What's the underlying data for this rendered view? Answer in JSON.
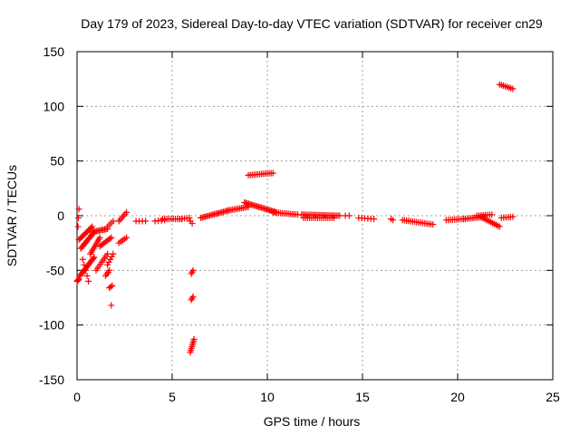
{
  "chart_data": {
    "type": "scatter",
    "title": "Day 179 of 2023, Sidereal Day-to-day VTEC variation (SDTVAR) for receiver cn29",
    "xlabel": "GPS time / hours",
    "ylabel": "SDTVAR / TECUs",
    "xlim": [
      0,
      25
    ],
    "ylim": [
      -150,
      150
    ],
    "xticks": [
      0,
      5,
      10,
      15,
      20,
      25
    ],
    "yticks": [
      -150,
      -100,
      -50,
      0,
      50,
      100,
      150
    ],
    "xtick_labels": [
      "0",
      "5",
      "10",
      "15",
      "20",
      "25"
    ],
    "ytick_labels": [
      "-150",
      "-100",
      "-50",
      "0",
      "50",
      "100",
      "150"
    ],
    "grid": true,
    "marker": "+",
    "color": "#ff0000",
    "segments": [
      {
        "x0": 0.0,
        "y0": -60,
        "x1": 0.1,
        "y1": -58,
        "n": 4
      },
      {
        "x0": 0.05,
        "y0": -10,
        "x1": 0.1,
        "y1": 6,
        "n": 3
      },
      {
        "x0": 0.15,
        "y0": -55,
        "x1": 0.9,
        "y1": -38,
        "n": 16
      },
      {
        "x0": 0.2,
        "y0": -30,
        "x1": 0.9,
        "y1": -15,
        "n": 14
      },
      {
        "x0": 0.1,
        "y0": -22,
        "x1": 0.8,
        "y1": -10,
        "n": 12
      },
      {
        "x0": 0.3,
        "y0": -40,
        "x1": 0.6,
        "y1": -60,
        "n": 5
      },
      {
        "x0": 0.7,
        "y0": -35,
        "x1": 1.2,
        "y1": -20,
        "n": 10
      },
      {
        "x0": 0.8,
        "y0": -15,
        "x1": 1.6,
        "y1": -12,
        "n": 12
      },
      {
        "x0": 1.0,
        "y0": -50,
        "x1": 1.6,
        "y1": -35,
        "n": 9
      },
      {
        "x0": 1.2,
        "y0": -28,
        "x1": 1.8,
        "y1": -20,
        "n": 9
      },
      {
        "x0": 1.5,
        "y0": -55,
        "x1": 1.7,
        "y1": -50,
        "n": 4
      },
      {
        "x0": 1.6,
        "y0": -45,
        "x1": 1.9,
        "y1": -35,
        "n": 5
      },
      {
        "x0": 1.6,
        "y0": -10,
        "x1": 1.9,
        "y1": -5,
        "n": 4
      },
      {
        "x0": 1.7,
        "y0": -66,
        "x1": 1.85,
        "y1": -64,
        "n": 3
      },
      {
        "x0": 1.8,
        "y0": -82,
        "x1": 1.8,
        "y1": -82,
        "n": 1
      },
      {
        "x0": 2.2,
        "y0": -5,
        "x1": 2.6,
        "y1": 3,
        "n": 6
      },
      {
        "x0": 2.2,
        "y0": -25,
        "x1": 2.6,
        "y1": -20,
        "n": 5
      },
      {
        "x0": 3.1,
        "y0": -5,
        "x1": 3.6,
        "y1": -5,
        "n": 4
      },
      {
        "x0": 4.1,
        "y0": -5,
        "x1": 4.6,
        "y1": -4,
        "n": 4
      },
      {
        "x0": 4.5,
        "y0": -3,
        "x1": 5.5,
        "y1": -3,
        "n": 10
      },
      {
        "x0": 5.4,
        "y0": -3,
        "x1": 5.9,
        "y1": -2,
        "n": 5
      },
      {
        "x0": 5.95,
        "y0": -5,
        "x1": 6.05,
        "y1": -7,
        "n": 2
      },
      {
        "x0": 6.0,
        "y0": -53,
        "x1": 6.1,
        "y1": -50,
        "n": 3
      },
      {
        "x0": 6.0,
        "y0": -77,
        "x1": 6.1,
        "y1": -74,
        "n": 3
      },
      {
        "x0": 5.95,
        "y0": -125,
        "x1": 6.15,
        "y1": -113,
        "n": 8
      },
      {
        "x0": 6.5,
        "y0": -2,
        "x1": 8.0,
        "y1": 5,
        "n": 20
      },
      {
        "x0": 8.0,
        "y0": 5,
        "x1": 9.0,
        "y1": 8,
        "n": 12
      },
      {
        "x0": 8.8,
        "y0": 12,
        "x1": 10.5,
        "y1": 3,
        "n": 24
      },
      {
        "x0": 9.0,
        "y0": 37,
        "x1": 10.3,
        "y1": 39,
        "n": 14
      },
      {
        "x0": 10.3,
        "y0": 3,
        "x1": 11.6,
        "y1": 1,
        "n": 14
      },
      {
        "x0": 11.8,
        "y0": 1,
        "x1": 13.8,
        "y1": 0,
        "n": 24
      },
      {
        "x0": 11.9,
        "y0": -2,
        "x1": 13.5,
        "y1": -2,
        "n": 16
      },
      {
        "x0": 14.1,
        "y0": 0,
        "x1": 14.3,
        "y1": 0,
        "n": 2
      },
      {
        "x0": 14.8,
        "y0": -2,
        "x1": 15.6,
        "y1": -3,
        "n": 6
      },
      {
        "x0": 16.5,
        "y0": -3,
        "x1": 16.6,
        "y1": -4,
        "n": 2
      },
      {
        "x0": 17.1,
        "y0": -4,
        "x1": 18.7,
        "y1": -8,
        "n": 16
      },
      {
        "x0": 19.4,
        "y0": -4,
        "x1": 20.4,
        "y1": -3,
        "n": 10
      },
      {
        "x0": 20.3,
        "y0": -3,
        "x1": 21.4,
        "y1": -1,
        "n": 12
      },
      {
        "x0": 21.2,
        "y0": -1,
        "x1": 22.2,
        "y1": -10,
        "n": 12
      },
      {
        "x0": 21.0,
        "y0": 0,
        "x1": 21.8,
        "y1": 1,
        "n": 8
      },
      {
        "x0": 22.3,
        "y0": -2,
        "x1": 22.9,
        "y1": -1,
        "n": 6
      },
      {
        "x0": 22.2,
        "y0": 120,
        "x1": 22.9,
        "y1": 116,
        "n": 8
      }
    ]
  }
}
